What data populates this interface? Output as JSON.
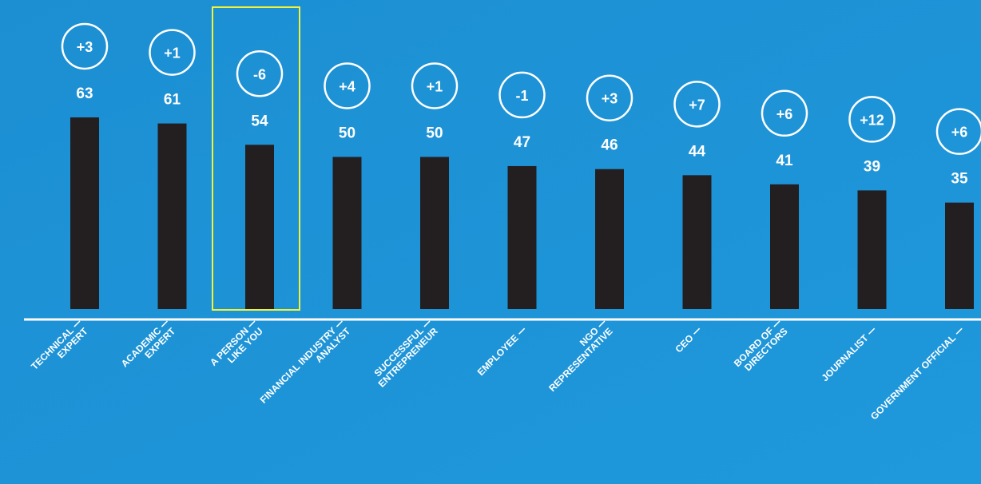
{
  "chart_data": {
    "type": "bar",
    "categories": [
      [
        "TECHNICAL",
        "EXPERT"
      ],
      [
        "ACADEMIC",
        "EXPERT"
      ],
      [
        "A PERSON",
        "LIKE YOU"
      ],
      [
        "FINANCIAL INDUSTRY",
        "ANALYST"
      ],
      [
        "SUCCESSFUL",
        "ENTREPRENEUR"
      ],
      [
        "EMPLOYEE"
      ],
      [
        "NGO",
        "REPRESENTATIVE"
      ],
      [
        "CEO"
      ],
      [
        "BOARD OF",
        "DIRECTORS"
      ],
      [
        "JOURNALIST"
      ],
      [
        "GOVERNMENT OFFICIAL"
      ]
    ],
    "values": [
      63,
      61,
      54,
      50,
      50,
      47,
      46,
      44,
      41,
      39,
      35
    ],
    "changes": [
      "+3",
      "+1",
      "-6",
      "+4",
      "+1",
      "-1",
      "+3",
      "+7",
      "+6",
      "+12",
      "+6"
    ],
    "color": "#231f20"
  }
}
